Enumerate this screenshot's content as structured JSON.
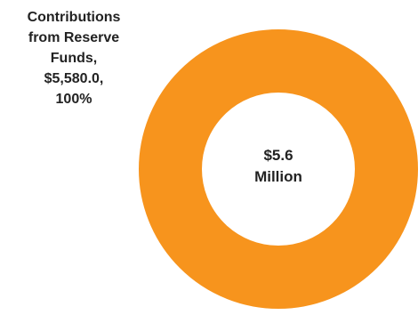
{
  "chart_data": {
    "type": "pie",
    "variant": "donut",
    "slices": [
      {
        "name": "Contributions from Reserve Funds",
        "value": 5580.0,
        "percent": 100,
        "color": "#F7941D"
      }
    ],
    "data_label_lines": [
      "Contributions",
      "from Reserve",
      "Funds,",
      "$5,580.0,",
      "100%"
    ],
    "center_label_lines": [
      "$5.6",
      "Million"
    ],
    "legend": "none"
  }
}
